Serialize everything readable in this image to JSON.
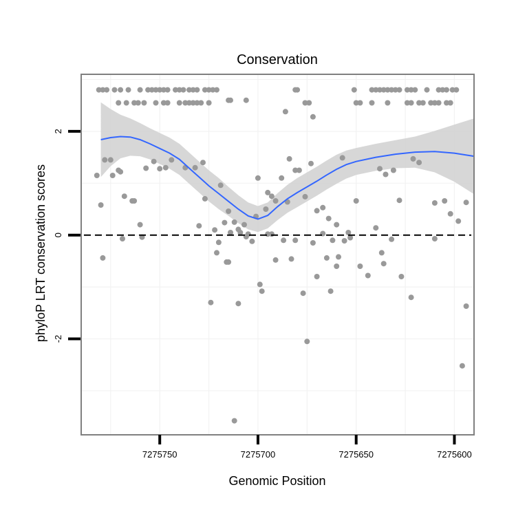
{
  "chart_data": {
    "type": "scatter",
    "title": "Conservation",
    "xlabel": "Genomic Position",
    "ylabel": "phyloP LRT conservation scores",
    "xlim": [
      7275790,
      7275590
    ],
    "ylim": [
      -3.85,
      3.1
    ],
    "x_reversed": true,
    "x_ticks": [
      7275750,
      7275700,
      7275650,
      7275600
    ],
    "x_tick_labels": [
      "7275750",
      "7275700",
      "7275650",
      "7275600"
    ],
    "y_ticks": [
      -2,
      0,
      2
    ],
    "y_tick_labels": [
      "-2",
      "0",
      "2"
    ],
    "grid": true,
    "reference_line": {
      "y": 0,
      "style": "dashed"
    },
    "colors": {
      "points": "#999999",
      "smooth": "#3366ff",
      "ribbon": "#d3d3d3",
      "grid": "#f2f2f2",
      "frame": "#7f7f7f"
    },
    "points": [
      [
        7275781,
        2.8
      ],
      [
        7275779,
        2.8
      ],
      [
        7275777,
        2.8
      ],
      [
        7275773,
        2.8
      ],
      [
        7275770,
        2.8
      ],
      [
        7275766,
        2.8
      ],
      [
        7275760,
        2.8
      ],
      [
        7275756,
        2.8
      ],
      [
        7275754,
        2.8
      ],
      [
        7275752,
        2.8
      ],
      [
        7275750,
        2.8
      ],
      [
        7275748,
        2.8
      ],
      [
        7275746,
        2.8
      ],
      [
        7275742,
        2.8
      ],
      [
        7275740,
        2.8
      ],
      [
        7275738,
        2.8
      ],
      [
        7275735,
        2.8
      ],
      [
        7275733,
        2.8
      ],
      [
        7275731,
        2.8
      ],
      [
        7275727,
        2.8
      ],
      [
        7275725,
        2.8
      ],
      [
        7275723,
        2.8
      ],
      [
        7275721,
        2.8
      ],
      [
        7275771,
        2.55
      ],
      [
        7275767,
        2.55
      ],
      [
        7275763,
        2.55
      ],
      [
        7275761,
        2.55
      ],
      [
        7275758,
        2.55
      ],
      [
        7275752,
        2.55
      ],
      [
        7275748,
        2.55
      ],
      [
        7275746,
        2.55
      ],
      [
        7275740,
        2.55
      ],
      [
        7275737,
        2.55
      ],
      [
        7275735,
        2.55
      ],
      [
        7275733,
        2.55
      ],
      [
        7275731,
        2.55
      ],
      [
        7275729,
        2.55
      ],
      [
        7275725,
        2.55
      ],
      [
        7275681,
        2.8
      ],
      [
        7275680,
        2.8
      ],
      [
        7275651,
        2.8
      ],
      [
        7275642,
        2.8
      ],
      [
        7275640,
        2.8
      ],
      [
        7275638,
        2.8
      ],
      [
        7275636,
        2.8
      ],
      [
        7275634,
        2.8
      ],
      [
        7275632,
        2.8
      ],
      [
        7275630,
        2.8
      ],
      [
        7275628,
        2.8
      ],
      [
        7275624,
        2.8
      ],
      [
        7275622,
        2.8
      ],
      [
        7275620,
        2.8
      ],
      [
        7275614,
        2.8
      ],
      [
        7275608,
        2.8
      ],
      [
        7275606,
        2.8
      ],
      [
        7275604,
        2.8
      ],
      [
        7275601,
        2.8
      ],
      [
        7275599,
        2.8
      ],
      [
        7275676,
        2.55
      ],
      [
        7275674,
        2.55
      ],
      [
        7275650,
        2.55
      ],
      [
        7275648,
        2.55
      ],
      [
        7275642,
        2.55
      ],
      [
        7275634,
        2.55
      ],
      [
        7275624,
        2.55
      ],
      [
        7275622,
        2.55
      ],
      [
        7275618,
        2.55
      ],
      [
        7275616,
        2.55
      ],
      [
        7275612,
        2.55
      ],
      [
        7275610,
        2.55
      ],
      [
        7275608,
        2.55
      ],
      [
        7275604,
        2.55
      ],
      [
        7275602,
        2.55
      ],
      [
        7275715,
        2.6
      ],
      [
        7275714,
        2.6
      ],
      [
        7275706,
        2.6
      ],
      [
        7275686,
        2.38
      ],
      [
        7275672,
        2.28
      ],
      [
        7275782,
        1.15
      ],
      [
        7275778,
        1.45
      ],
      [
        7275775,
        1.45
      ],
      [
        7275774,
        1.15
      ],
      [
        7275771,
        1.25
      ],
      [
        7275768,
        0.75
      ],
      [
        7275764,
        0.66
      ],
      [
        7275763,
        0.66
      ],
      [
        7275760,
        0.2
      ],
      [
        7275757,
        1.29
      ],
      [
        7275753,
        1.42
      ],
      [
        7275750,
        1.28
      ],
      [
        7275747,
        1.3
      ],
      [
        7275744,
        1.45
      ],
      [
        7275737,
        1.3
      ],
      [
        7275732,
        1.3
      ],
      [
        7275728,
        1.4
      ],
      [
        7275727,
        0.7
      ],
      [
        7275719,
        0.96
      ],
      [
        7275715,
        0.46
      ],
      [
        7275710,
        0.11
      ],
      [
        7275707,
        0.2
      ],
      [
        7275700,
        1.1
      ],
      [
        7275696,
        0.5
      ],
      [
        7275695,
        0.82
      ],
      [
        7275693,
        0.75
      ],
      [
        7275691,
        0.66
      ],
      [
        7275688,
        1.1
      ],
      [
        7275684,
        1.47
      ],
      [
        7275681,
        1.25
      ],
      [
        7275679,
        1.25
      ],
      [
        7275676,
        0.74
      ],
      [
        7275673,
        1.38
      ],
      [
        7275670,
        0.47
      ],
      [
        7275667,
        0.53
      ],
      [
        7275664,
        0.32
      ],
      [
        7275660,
        0.2
      ],
      [
        7275657,
        1.49
      ],
      [
        7275654,
        0.05
      ],
      [
        7275650,
        0.66
      ],
      [
        7275640,
        0.14
      ],
      [
        7275638,
        1.28
      ],
      [
        7275635,
        1.17
      ],
      [
        7275631,
        1.25
      ],
      [
        7275628,
        0.67
      ],
      [
        7275621,
        1.47
      ],
      [
        7275618,
        1.4
      ],
      [
        7275610,
        0.62
      ],
      [
        7275605,
        0.66
      ],
      [
        7275602,
        0.41
      ],
      [
        7275598,
        0.27
      ],
      [
        7275594,
        0.63
      ],
      [
        7275780,
        0.58
      ],
      [
        7275779,
        -0.44
      ],
      [
        7275770,
        1.22
      ],
      [
        7275769,
        -0.07
      ],
      [
        7275759,
        -0.04
      ],
      [
        7275730,
        0.18
      ],
      [
        7275722,
        0.1
      ],
      [
        7275721,
        -0.34
      ],
      [
        7275720,
        -0.14
      ],
      [
        7275717,
        0.24
      ],
      [
        7275716,
        -0.52
      ],
      [
        7275715,
        -0.52
      ],
      [
        7275714,
        0.05
      ],
      [
        7275712,
        0.25
      ],
      [
        7275710,
        -1.32
      ],
      [
        7275709,
        0.05
      ],
      [
        7275706,
        -0.03
      ],
      [
        7275705,
        0.02
      ],
      [
        7275703,
        -0.12
      ],
      [
        7275701,
        0.36
      ],
      [
        7275699,
        -0.95
      ],
      [
        7275698,
        -1.08
      ],
      [
        7275695,
        0.02
      ],
      [
        7275693,
        0.02
      ],
      [
        7275691,
        -0.48
      ],
      [
        7275687,
        -0.1
      ],
      [
        7275685,
        0.64
      ],
      [
        7275683,
        -0.46
      ],
      [
        7275681,
        -0.1
      ],
      [
        7275677,
        -1.12
      ],
      [
        7275675,
        -2.05
      ],
      [
        7275672,
        -0.15
      ],
      [
        7275670,
        -0.8
      ],
      [
        7275667,
        0.03
      ],
      [
        7275665,
        -0.44
      ],
      [
        7275663,
        -1.08
      ],
      [
        7275662,
        -0.1
      ],
      [
        7275660,
        -0.6
      ],
      [
        7275659,
        -0.42
      ],
      [
        7275656,
        -0.11
      ],
      [
        7275653,
        -0.05
      ],
      [
        7275648,
        -0.6
      ],
      [
        7275644,
        -0.78
      ],
      [
        7275637,
        -0.34
      ],
      [
        7275636,
        -0.55
      ],
      [
        7275632,
        -0.08
      ],
      [
        7275627,
        -0.8
      ],
      [
        7275622,
        -1.2
      ],
      [
        7275610,
        -0.07
      ],
      [
        7275596,
        -2.52
      ],
      [
        7275594,
        -1.37
      ],
      [
        7275724,
        -1.3
      ],
      [
        7275712,
        -3.58
      ]
    ],
    "smooth": [
      [
        7275780,
        1.84
      ],
      [
        7275775,
        1.88
      ],
      [
        7275770,
        1.9
      ],
      [
        7275765,
        1.89
      ],
      [
        7275760,
        1.84
      ],
      [
        7275755,
        1.76
      ],
      [
        7275750,
        1.67
      ],
      [
        7275745,
        1.58
      ],
      [
        7275740,
        1.46
      ],
      [
        7275735,
        1.29
      ],
      [
        7275730,
        1.12
      ],
      [
        7275725,
        0.95
      ],
      [
        7275720,
        0.8
      ],
      [
        7275715,
        0.65
      ],
      [
        7275710,
        0.5
      ],
      [
        7275705,
        0.37
      ],
      [
        7275700,
        0.31
      ],
      [
        7275695,
        0.38
      ],
      [
        7275690,
        0.55
      ],
      [
        7275685,
        0.7
      ],
      [
        7275680,
        0.82
      ],
      [
        7275675,
        0.93
      ],
      [
        7275670,
        1.04
      ],
      [
        7275665,
        1.16
      ],
      [
        7275660,
        1.27
      ],
      [
        7275655,
        1.36
      ],
      [
        7275650,
        1.42
      ],
      [
        7275640,
        1.5
      ],
      [
        7275630,
        1.56
      ],
      [
        7275620,
        1.6
      ],
      [
        7275610,
        1.61
      ],
      [
        7275600,
        1.58
      ],
      [
        7275590,
        1.52
      ]
    ],
    "ribbon_halfwidth": [
      [
        7275780,
        0.72
      ],
      [
        7275775,
        0.55
      ],
      [
        7275770,
        0.42
      ],
      [
        7275765,
        0.36
      ],
      [
        7275760,
        0.32
      ],
      [
        7275755,
        0.3
      ],
      [
        7275750,
        0.3
      ],
      [
        7275745,
        0.3
      ],
      [
        7275740,
        0.3
      ],
      [
        7275735,
        0.3
      ],
      [
        7275730,
        0.3
      ],
      [
        7275725,
        0.3
      ],
      [
        7275720,
        0.3
      ],
      [
        7275715,
        0.28
      ],
      [
        7275710,
        0.27
      ],
      [
        7275705,
        0.26
      ],
      [
        7275700,
        0.25
      ],
      [
        7275695,
        0.25
      ],
      [
        7275690,
        0.26
      ],
      [
        7275685,
        0.27
      ],
      [
        7275680,
        0.28
      ],
      [
        7275675,
        0.28
      ],
      [
        7275670,
        0.28
      ],
      [
        7275665,
        0.28
      ],
      [
        7275660,
        0.28
      ],
      [
        7275655,
        0.27
      ],
      [
        7275650,
        0.26
      ],
      [
        7275640,
        0.26
      ],
      [
        7275630,
        0.27
      ],
      [
        7275620,
        0.3
      ],
      [
        7275610,
        0.4
      ],
      [
        7275600,
        0.55
      ],
      [
        7275590,
        0.73
      ]
    ]
  }
}
